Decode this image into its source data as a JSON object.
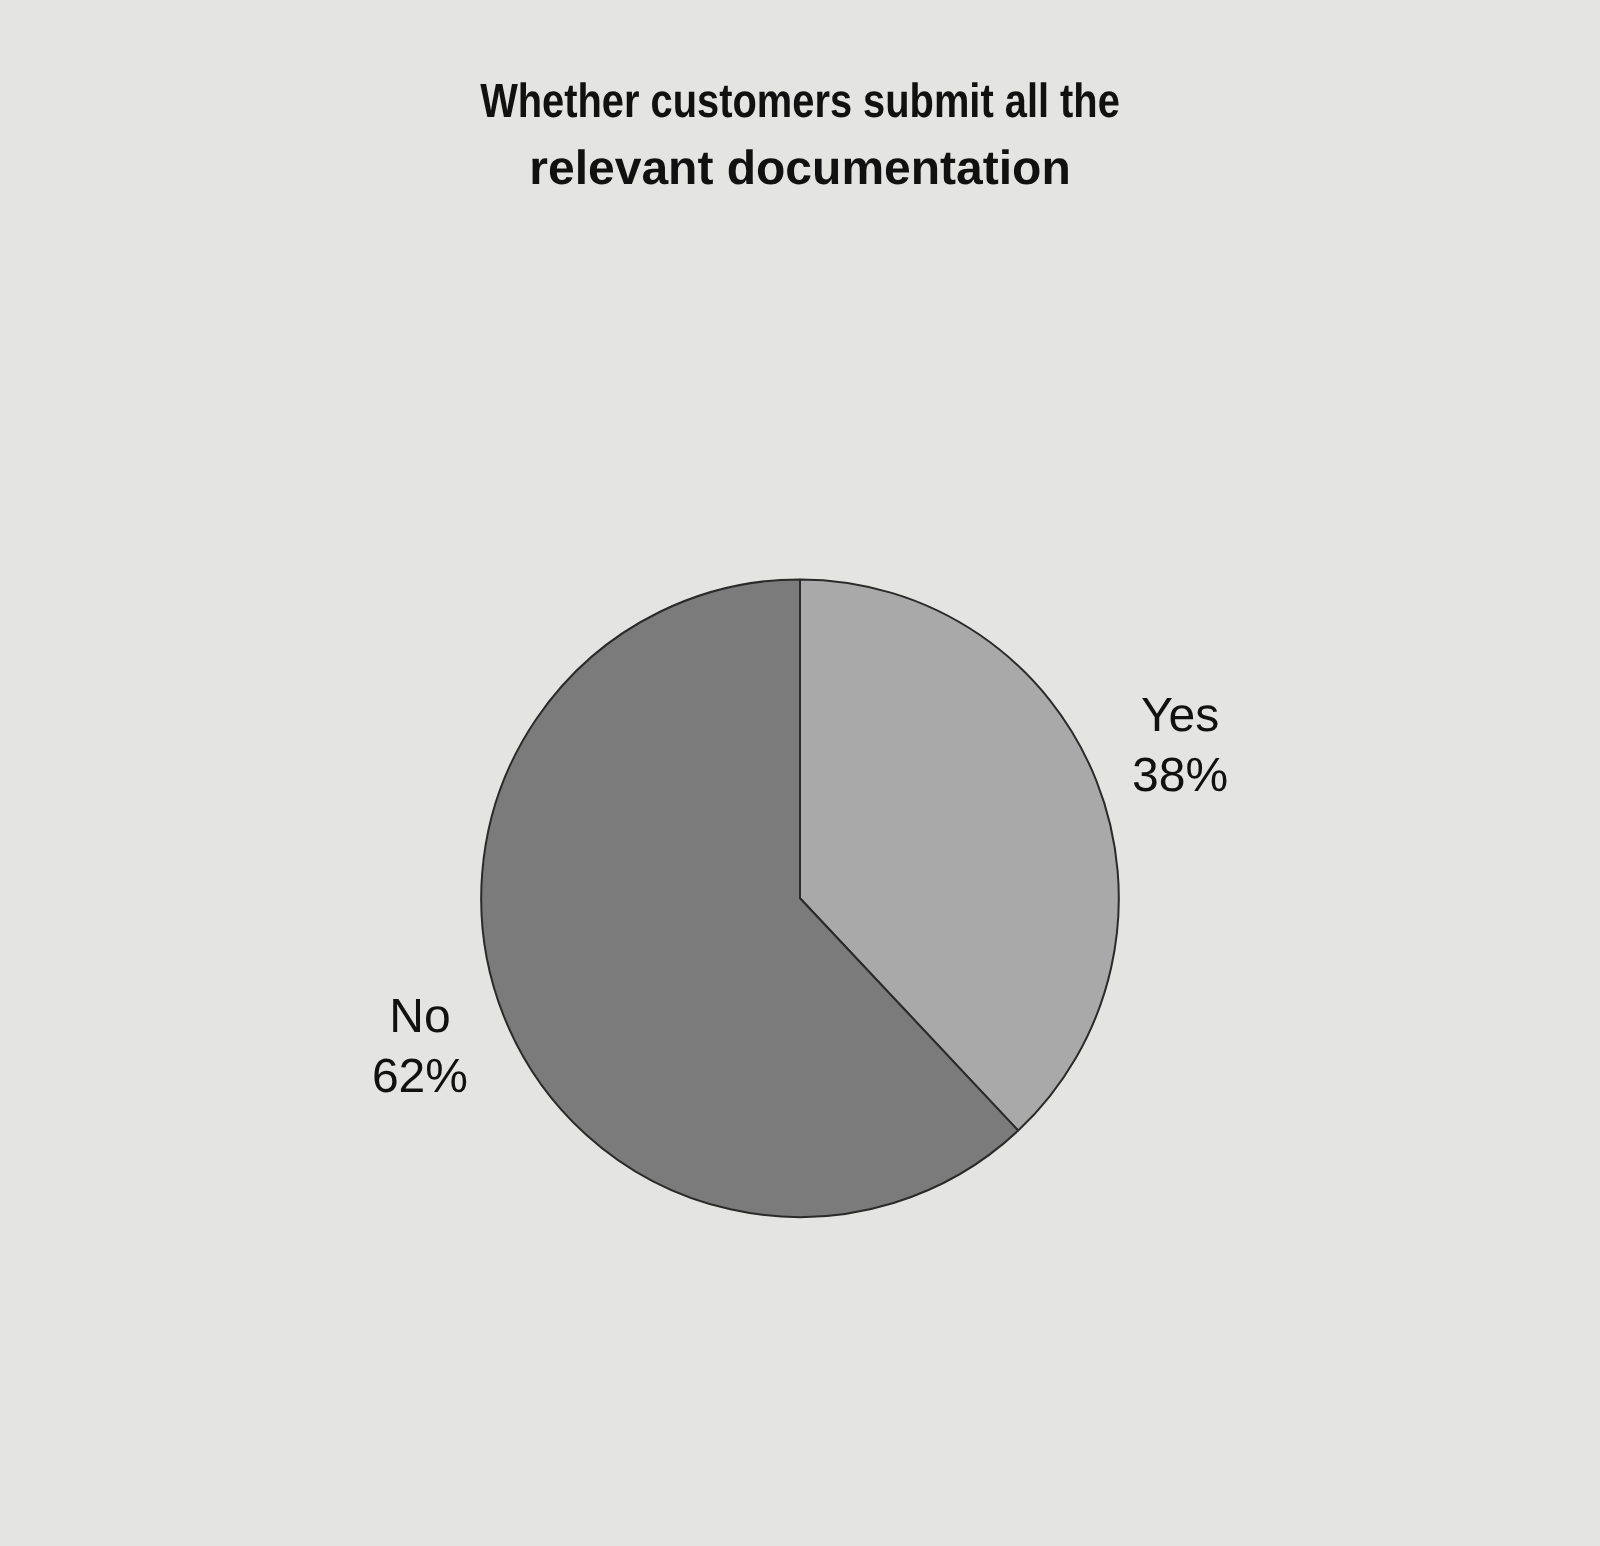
{
  "chart_data": {
    "type": "pie",
    "title": "Whether customers submit all the relevant documentation",
    "categories": [
      "Yes",
      "No"
    ],
    "values": [
      38,
      62
    ],
    "colors": [
      "#a9a9a9",
      "#7b7b7b"
    ],
    "value_labels": [
      "38%",
      "62%"
    ],
    "legend": false
  }
}
